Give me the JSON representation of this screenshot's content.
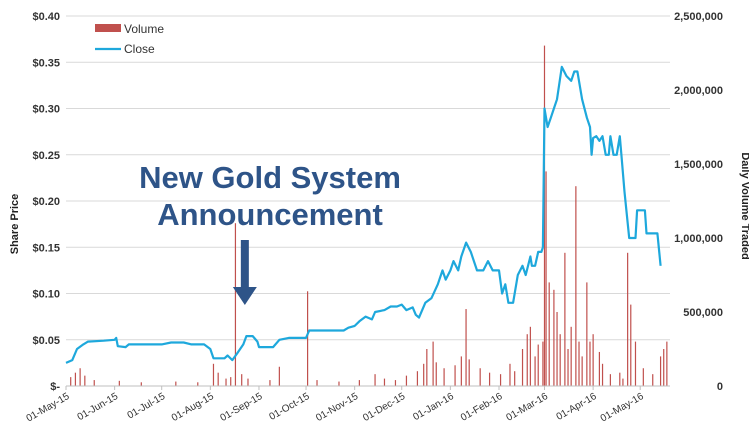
{
  "chart_data": {
    "type": "line",
    "title": "",
    "ylabel": "Share Price",
    "y2label": "Daily Volume Traded",
    "ylim": [
      0,
      0.4
    ],
    "y2lim": [
      0,
      2500000
    ],
    "y_ticks": [
      "$-",
      "$0.05",
      "$0.10",
      "$0.15",
      "$0.20",
      "$0.25",
      "$0.30",
      "$0.35",
      "$0.40"
    ],
    "y2_ticks": [
      "0",
      "500,000",
      "1,000,000",
      "1,500,000",
      "2,000,000",
      "2,500,000"
    ],
    "x_ticks": [
      "01-May-15",
      "01-Jun-15",
      "01-Jul-15",
      "01-Aug-15",
      "01-Sep-15",
      "01-Oct-15",
      "01-Nov-15",
      "01-Dec-15",
      "01-Jan-16",
      "01-Feb-16",
      "01-Mar-16",
      "01-Apr-16",
      "01-May-16"
    ],
    "x_range": [
      "2015-05-01",
      "2016-05-20"
    ],
    "legend": {
      "position": "top-left",
      "entries": [
        "Volume",
        "Close"
      ]
    },
    "grid": "horizontal",
    "colors": {
      "close": "#1ea8dc",
      "volume": "#c0504d",
      "annotation": "#2e5488",
      "grid": "#d9d9d9"
    },
    "annotation": {
      "lines": [
        "New Gold System",
        "Announcement"
      ],
      "arrow_date": "2015-08-23"
    },
    "series": [
      {
        "name": "Close",
        "axis": "left",
        "points": [
          [
            "2015-05-01",
            0.025
          ],
          [
            "2015-05-05",
            0.028
          ],
          [
            "2015-05-08",
            0.04
          ],
          [
            "2015-05-12",
            0.045
          ],
          [
            "2015-05-15",
            0.048
          ],
          [
            "2015-05-25",
            0.049
          ],
          [
            "2015-06-01",
            0.05
          ],
          [
            "2015-06-02",
            0.052
          ],
          [
            "2015-06-03",
            0.043
          ],
          [
            "2015-06-08",
            0.042
          ],
          [
            "2015-06-10",
            0.045
          ],
          [
            "2015-07-01",
            0.045
          ],
          [
            "2015-07-07",
            0.047
          ],
          [
            "2015-07-15",
            0.047
          ],
          [
            "2015-07-20",
            0.045
          ],
          [
            "2015-07-28",
            0.045
          ],
          [
            "2015-08-01",
            0.04
          ],
          [
            "2015-08-03",
            0.03
          ],
          [
            "2015-08-10",
            0.03
          ],
          [
            "2015-08-12",
            0.033
          ],
          [
            "2015-08-15",
            0.028
          ],
          [
            "2015-08-18",
            0.035
          ],
          [
            "2015-08-22",
            0.045
          ],
          [
            "2015-08-24",
            0.054
          ],
          [
            "2015-08-28",
            0.054
          ],
          [
            "2015-08-31",
            0.048
          ],
          [
            "2015-09-01",
            0.042
          ],
          [
            "2015-09-10",
            0.042
          ],
          [
            "2015-09-14",
            0.05
          ],
          [
            "2015-09-20",
            0.052
          ],
          [
            "2015-10-01",
            0.052
          ],
          [
            "2015-10-03",
            0.06
          ],
          [
            "2015-10-25",
            0.06
          ],
          [
            "2015-10-28",
            0.063
          ],
          [
            "2015-11-01",
            0.065
          ],
          [
            "2015-11-04",
            0.07
          ],
          [
            "2015-11-08",
            0.075
          ],
          [
            "2015-11-12",
            0.072
          ],
          [
            "2015-11-14",
            0.08
          ],
          [
            "2015-11-20",
            0.082
          ],
          [
            "2015-11-24",
            0.086
          ],
          [
            "2015-11-28",
            0.086
          ],
          [
            "2015-12-01",
            0.088
          ],
          [
            "2015-12-04",
            0.082
          ],
          [
            "2015-12-08",
            0.085
          ],
          [
            "2015-12-10",
            0.077
          ],
          [
            "2015-12-12",
            0.074
          ],
          [
            "2015-12-16",
            0.09
          ],
          [
            "2015-12-20",
            0.095
          ],
          [
            "2015-12-24",
            0.11
          ],
          [
            "2015-12-27",
            0.125
          ],
          [
            "2015-12-29",
            0.115
          ],
          [
            "2016-01-01",
            0.125
          ],
          [
            "2016-01-03",
            0.135
          ],
          [
            "2016-01-06",
            0.125
          ],
          [
            "2016-01-08",
            0.14
          ],
          [
            "2016-01-11",
            0.155
          ],
          [
            "2016-01-14",
            0.145
          ],
          [
            "2016-01-18",
            0.125
          ],
          [
            "2016-01-22",
            0.125
          ],
          [
            "2016-01-25",
            0.135
          ],
          [
            "2016-01-28",
            0.125
          ],
          [
            "2016-02-01",
            0.125
          ],
          [
            "2016-02-03",
            0.1
          ],
          [
            "2016-02-05",
            0.11
          ],
          [
            "2016-02-07",
            0.09
          ],
          [
            "2016-02-10",
            0.09
          ],
          [
            "2016-02-13",
            0.12
          ],
          [
            "2016-02-16",
            0.13
          ],
          [
            "2016-02-18",
            0.12
          ],
          [
            "2016-02-21",
            0.14
          ],
          [
            "2016-02-22",
            0.13
          ],
          [
            "2016-02-24",
            0.13
          ],
          [
            "2016-02-26",
            0.145
          ],
          [
            "2016-02-28",
            0.145
          ],
          [
            "2016-02-29",
            0.15
          ],
          [
            "2016-03-01",
            0.3
          ],
          [
            "2016-03-03",
            0.28
          ],
          [
            "2016-03-05",
            0.29
          ],
          [
            "2016-03-07",
            0.3
          ],
          [
            "2016-03-09",
            0.31
          ],
          [
            "2016-03-12",
            0.345
          ],
          [
            "2016-03-15",
            0.335
          ],
          [
            "2016-03-18",
            0.33
          ],
          [
            "2016-03-20",
            0.34
          ],
          [
            "2016-03-22",
            0.34
          ],
          [
            "2016-03-25",
            0.31
          ],
          [
            "2016-03-28",
            0.29
          ],
          [
            "2016-03-30",
            0.28
          ],
          [
            "2016-03-31",
            0.25
          ],
          [
            "2016-04-01",
            0.268
          ],
          [
            "2016-04-03",
            0.27
          ],
          [
            "2016-04-05",
            0.265
          ],
          [
            "2016-04-07",
            0.27
          ],
          [
            "2016-04-09",
            0.25
          ],
          [
            "2016-04-11",
            0.25
          ],
          [
            "2016-04-12",
            0.27
          ],
          [
            "2016-04-14",
            0.25
          ],
          [
            "2016-04-16",
            0.25
          ],
          [
            "2016-04-18",
            0.27
          ],
          [
            "2016-04-19",
            0.25
          ],
          [
            "2016-04-21",
            0.21
          ],
          [
            "2016-04-24",
            0.16
          ],
          [
            "2016-04-28",
            0.16
          ],
          [
            "2016-04-29",
            0.19
          ],
          [
            "2016-05-04",
            0.19
          ],
          [
            "2016-05-05",
            0.165
          ],
          [
            "2016-05-12",
            0.165
          ],
          [
            "2016-05-14",
            0.13
          ]
        ]
      },
      {
        "name": "Volume",
        "axis": "right",
        "type": "bar",
        "points": [
          [
            "2015-05-04",
            60000
          ],
          [
            "2015-05-07",
            90000
          ],
          [
            "2015-05-10",
            120000
          ],
          [
            "2015-05-13",
            70000
          ],
          [
            "2015-05-19",
            40000
          ],
          [
            "2015-06-04",
            35000
          ],
          [
            "2015-06-18",
            25000
          ],
          [
            "2015-07-10",
            30000
          ],
          [
            "2015-07-24",
            25000
          ],
          [
            "2015-08-03",
            150000
          ],
          [
            "2015-08-06",
            90000
          ],
          [
            "2015-08-11",
            50000
          ],
          [
            "2015-08-14",
            60000
          ],
          [
            "2015-08-17",
            1100000
          ],
          [
            "2015-08-21",
            80000
          ],
          [
            "2015-08-25",
            50000
          ],
          [
            "2015-09-08",
            40000
          ],
          [
            "2015-09-14",
            130000
          ],
          [
            "2015-10-02",
            640000
          ],
          [
            "2015-10-08",
            40000
          ],
          [
            "2015-10-22",
            30000
          ],
          [
            "2015-11-04",
            40000
          ],
          [
            "2015-11-14",
            80000
          ],
          [
            "2015-11-20",
            50000
          ],
          [
            "2015-11-27",
            40000
          ],
          [
            "2015-12-04",
            70000
          ],
          [
            "2015-12-11",
            100000
          ],
          [
            "2015-12-15",
            150000
          ],
          [
            "2015-12-17",
            250000
          ],
          [
            "2015-12-21",
            300000
          ],
          [
            "2015-12-23",
            160000
          ],
          [
            "2015-12-28",
            120000
          ],
          [
            "2016-01-04",
            140000
          ],
          [
            "2016-01-08",
            200000
          ],
          [
            "2016-01-11",
            520000
          ],
          [
            "2016-01-13",
            180000
          ],
          [
            "2016-01-20",
            120000
          ],
          [
            "2016-01-26",
            90000
          ],
          [
            "2016-02-02",
            80000
          ],
          [
            "2016-02-08",
            150000
          ],
          [
            "2016-02-11",
            100000
          ],
          [
            "2016-02-16",
            250000
          ],
          [
            "2016-02-19",
            350000
          ],
          [
            "2016-02-21",
            400000
          ],
          [
            "2016-02-24",
            200000
          ],
          [
            "2016-02-26",
            280000
          ],
          [
            "2016-02-29",
            300000
          ],
          [
            "2016-03-01",
            2300000
          ],
          [
            "2016-03-02",
            1450000
          ],
          [
            "2016-03-04",
            700000
          ],
          [
            "2016-03-07",
            650000
          ],
          [
            "2016-03-09",
            500000
          ],
          [
            "2016-03-11",
            350000
          ],
          [
            "2016-03-14",
            900000
          ],
          [
            "2016-03-16",
            250000
          ],
          [
            "2016-03-18",
            400000
          ],
          [
            "2016-03-21",
            1350000
          ],
          [
            "2016-03-23",
            300000
          ],
          [
            "2016-03-25",
            200000
          ],
          [
            "2016-03-28",
            700000
          ],
          [
            "2016-03-30",
            300000
          ],
          [
            "2016-04-01",
            350000
          ],
          [
            "2016-04-05",
            230000
          ],
          [
            "2016-04-07",
            150000
          ],
          [
            "2016-04-12",
            80000
          ],
          [
            "2016-04-18",
            90000
          ],
          [
            "2016-04-20",
            50000
          ],
          [
            "2016-04-23",
            900000
          ],
          [
            "2016-04-25",
            550000
          ],
          [
            "2016-04-28",
            300000
          ],
          [
            "2016-05-03",
            120000
          ],
          [
            "2016-05-09",
            80000
          ],
          [
            "2016-05-14",
            200000
          ],
          [
            "2016-05-16",
            250000
          ],
          [
            "2016-05-18",
            300000
          ]
        ]
      }
    ]
  }
}
